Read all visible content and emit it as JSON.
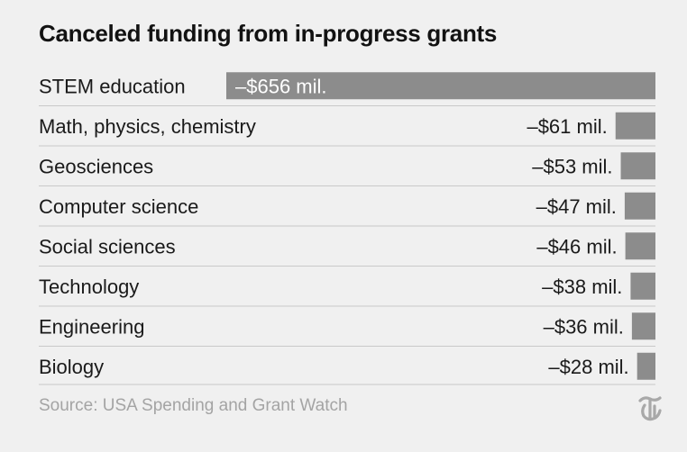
{
  "chart_data": {
    "type": "bar",
    "orientation": "horizontal",
    "title": "Canceled funding from in-progress grants",
    "categories": [
      "STEM education",
      "Math, physics, chemistry",
      "Geosciences",
      "Computer science",
      "Social sciences",
      "Technology",
      "Engineering",
      "Biology"
    ],
    "values": [
      -656,
      -61,
      -53,
      -47,
      -46,
      -38,
      -36,
      -28
    ],
    "value_labels": [
      "–$656 mil.",
      "–$61 mil.",
      "–$53 mil.",
      "–$47 mil.",
      "–$46 mil.",
      "–$38 mil.",
      "–$36 mil.",
      "–$28 mil."
    ],
    "bar_color": "#8c8c8c",
    "grid": false,
    "legend": "none"
  },
  "source": "Source: USA Spending and Grant Watch",
  "logo_icon": "nyt-logo-icon"
}
